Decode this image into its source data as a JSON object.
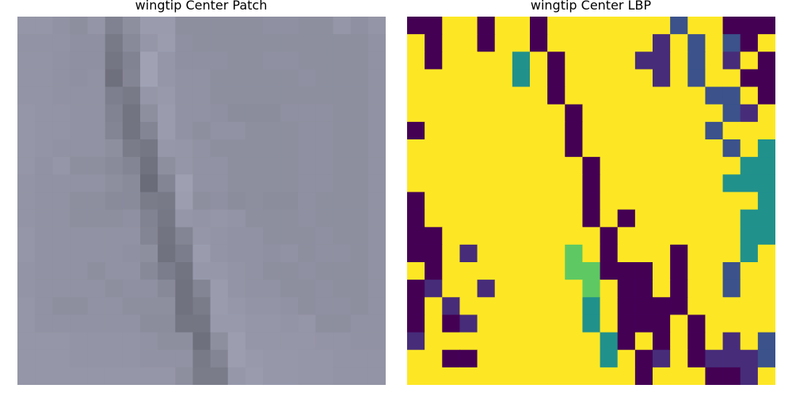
{
  "figure": {
    "left_title": "wingtip Center Patch",
    "right_title": "wingtip Center LBP"
  },
  "palette": {
    "lbp_dark": "#440154",
    "lbp_indigo": "#472c7a",
    "lbp_blue": "#3b528b",
    "lbp_teal": "#21918c",
    "lbp_green": "#5ec962",
    "lbp_yellow": "#fde725"
  },
  "patch": {
    "description_colors": "grayscale-blue tones",
    "rows": [
      [
        158,
        158,
        154,
        150,
        157,
        137,
        150,
        164,
        164,
        150,
        150,
        150,
        150,
        150,
        152,
        152,
        150,
        150,
        158,
        152,
        157
      ],
      [
        155,
        155,
        155,
        152,
        152,
        128,
        145,
        158,
        165,
        152,
        150,
        150,
        150,
        150,
        150,
        150,
        150,
        150,
        150,
        150,
        154
      ],
      [
        156,
        156,
        154,
        152,
        152,
        124,
        138,
        170,
        158,
        152,
        152,
        152,
        150,
        150,
        152,
        152,
        150,
        150,
        150,
        150,
        154
      ],
      [
        156,
        156,
        154,
        152,
        154,
        118,
        140,
        170,
        158,
        154,
        154,
        150,
        150,
        150,
        150,
        150,
        152,
        150,
        150,
        150,
        154
      ],
      [
        156,
        156,
        154,
        154,
        154,
        134,
        128,
        158,
        162,
        154,
        154,
        150,
        150,
        150,
        150,
        150,
        150,
        150,
        150,
        150,
        154
      ],
      [
        158,
        156,
        156,
        154,
        154,
        138,
        122,
        150,
        164,
        154,
        154,
        152,
        148,
        148,
        148,
        152,
        152,
        152,
        150,
        150,
        154
      ],
      [
        158,
        156,
        156,
        154,
        154,
        140,
        122,
        140,
        164,
        154,
        150,
        154,
        154,
        150,
        150,
        150,
        152,
        152,
        150,
        150,
        154
      ],
      [
        158,
        156,
        154,
        154,
        154,
        150,
        130,
        125,
        160,
        158,
        154,
        150,
        150,
        150,
        150,
        150,
        152,
        152,
        150,
        150,
        154
      ],
      [
        158,
        154,
        158,
        150,
        150,
        146,
        140,
        120,
        150,
        158,
        154,
        154,
        150,
        150,
        150,
        150,
        152,
        152,
        150,
        150,
        154
      ],
      [
        156,
        154,
        154,
        154,
        154,
        150,
        146,
        114,
        140,
        168,
        154,
        154,
        150,
        150,
        150,
        150,
        152,
        152,
        150,
        150,
        154
      ],
      [
        156,
        154,
        154,
        150,
        150,
        146,
        146,
        130,
        128,
        166,
        150,
        152,
        148,
        150,
        148,
        148,
        152,
        150,
        150,
        150,
        154
      ],
      [
        156,
        154,
        154,
        150,
        150,
        150,
        152,
        138,
        126,
        158,
        156,
        158,
        156,
        150,
        150,
        150,
        152,
        150,
        150,
        150,
        154
      ],
      [
        158,
        154,
        154,
        154,
        154,
        154,
        154,
        140,
        122,
        140,
        158,
        156,
        154,
        154,
        150,
        150,
        150,
        152,
        150,
        150,
        154
      ],
      [
        158,
        154,
        154,
        154,
        154,
        154,
        152,
        150,
        120,
        132,
        164,
        156,
        154,
        154,
        152,
        154,
        150,
        152,
        152,
        150,
        154
      ],
      [
        156,
        154,
        154,
        154,
        150,
        154,
        154,
        144,
        132,
        122,
        160,
        160,
        156,
        154,
        150,
        150,
        152,
        150,
        150,
        150,
        154
      ],
      [
        156,
        154,
        154,
        154,
        154,
        150,
        152,
        152,
        144,
        120,
        140,
        164,
        156,
        154,
        154,
        150,
        150,
        152,
        150,
        150,
        154
      ],
      [
        158,
        154,
        150,
        150,
        154,
        154,
        150,
        150,
        150,
        120,
        130,
        164,
        160,
        156,
        156,
        154,
        150,
        152,
        152,
        150,
        154
      ],
      [
        158,
        154,
        154,
        154,
        154,
        154,
        154,
        148,
        148,
        124,
        124,
        162,
        162,
        158,
        158,
        156,
        158,
        150,
        150,
        154,
        154
      ],
      [
        158,
        158,
        158,
        156,
        156,
        156,
        156,
        154,
        150,
        150,
        118,
        150,
        166,
        158,
        158,
        158,
        158,
        156,
        156,
        154,
        154
      ],
      [
        158,
        158,
        158,
        156,
        156,
        156,
        156,
        154,
        154,
        154,
        128,
        140,
        166,
        162,
        160,
        160,
        158,
        158,
        156,
        156,
        156
      ],
      [
        158,
        158,
        158,
        158,
        158,
        158,
        158,
        158,
        158,
        150,
        130,
        130,
        160,
        164,
        160,
        160,
        158,
        158,
        156,
        156,
        156
      ]
    ]
  },
  "lbp": {
    "rows": [
      [
        "d",
        "d",
        "y",
        "y",
        "d",
        "y",
        "y",
        "d",
        "y",
        "y",
        "y",
        "y",
        "y",
        "y",
        "y",
        "b",
        "y",
        "y",
        "d",
        "d",
        "d"
      ],
      [
        "y",
        "d",
        "y",
        "y",
        "d",
        "y",
        "y",
        "d",
        "y",
        "y",
        "y",
        "y",
        "y",
        "y",
        "i",
        "y",
        "b",
        "y",
        "b",
        "d",
        "y"
      ],
      [
        "y",
        "d",
        "y",
        "y",
        "y",
        "y",
        "t",
        "y",
        "d",
        "y",
        "y",
        "y",
        "y",
        "i",
        "i",
        "y",
        "b",
        "y",
        "i",
        "y",
        "d"
      ],
      [
        "y",
        "y",
        "y",
        "y",
        "y",
        "y",
        "t",
        "y",
        "d",
        "y",
        "y",
        "y",
        "y",
        "y",
        "i",
        "y",
        "b",
        "y",
        "y",
        "d",
        "d"
      ],
      [
        "y",
        "y",
        "y",
        "y",
        "y",
        "y",
        "y",
        "y",
        "d",
        "y",
        "y",
        "y",
        "y",
        "y",
        "y",
        "y",
        "y",
        "b",
        "b",
        "y",
        "d"
      ],
      [
        "y",
        "y",
        "y",
        "y",
        "y",
        "y",
        "y",
        "y",
        "y",
        "d",
        "y",
        "y",
        "y",
        "y",
        "y",
        "y",
        "y",
        "y",
        "b",
        "i",
        "y"
      ],
      [
        "d",
        "y",
        "y",
        "y",
        "y",
        "y",
        "y",
        "y",
        "y",
        "d",
        "y",
        "y",
        "y",
        "y",
        "y",
        "y",
        "y",
        "b",
        "y",
        "y",
        "y"
      ],
      [
        "y",
        "y",
        "y",
        "y",
        "y",
        "y",
        "y",
        "y",
        "y",
        "d",
        "y",
        "y",
        "y",
        "y",
        "y",
        "y",
        "y",
        "y",
        "b",
        "y",
        "t"
      ],
      [
        "y",
        "y",
        "y",
        "y",
        "y",
        "y",
        "y",
        "y",
        "y",
        "y",
        "d",
        "y",
        "y",
        "y",
        "y",
        "y",
        "y",
        "y",
        "y",
        "t",
        "t"
      ],
      [
        "y",
        "y",
        "y",
        "y",
        "y",
        "y",
        "y",
        "y",
        "y",
        "y",
        "d",
        "y",
        "y",
        "y",
        "y",
        "y",
        "y",
        "y",
        "t",
        "t",
        "t"
      ],
      [
        "d",
        "y",
        "y",
        "y",
        "y",
        "y",
        "y",
        "y",
        "y",
        "y",
        "d",
        "y",
        "y",
        "y",
        "y",
        "y",
        "y",
        "y",
        "y",
        "y",
        "t"
      ],
      [
        "d",
        "y",
        "y",
        "y",
        "y",
        "y",
        "y",
        "y",
        "y",
        "y",
        "d",
        "y",
        "d",
        "y",
        "y",
        "y",
        "y",
        "y",
        "y",
        "t",
        "t"
      ],
      [
        "d",
        "d",
        "y",
        "y",
        "y",
        "y",
        "y",
        "y",
        "y",
        "y",
        "y",
        "d",
        "y",
        "y",
        "y",
        "y",
        "y",
        "y",
        "y",
        "t",
        "t"
      ],
      [
        "d",
        "d",
        "y",
        "i",
        "y",
        "y",
        "y",
        "y",
        "y",
        "g",
        "y",
        "d",
        "y",
        "y",
        "y",
        "d",
        "y",
        "y",
        "y",
        "t",
        "y"
      ],
      [
        "y",
        "d",
        "y",
        "y",
        "y",
        "y",
        "y",
        "y",
        "y",
        "g",
        "g",
        "d",
        "d",
        "d",
        "y",
        "d",
        "y",
        "y",
        "b",
        "y",
        "y"
      ],
      [
        "d",
        "i",
        "y",
        "y",
        "i",
        "y",
        "y",
        "y",
        "y",
        "y",
        "g",
        "y",
        "d",
        "d",
        "y",
        "d",
        "y",
        "y",
        "b",
        "y",
        "y"
      ],
      [
        "d",
        "y",
        "i",
        "y",
        "y",
        "y",
        "y",
        "y",
        "y",
        "y",
        "t",
        "y",
        "d",
        "d",
        "d",
        "d",
        "y",
        "y",
        "y",
        "y",
        "y"
      ],
      [
        "d",
        "y",
        "d",
        "i",
        "y",
        "y",
        "y",
        "y",
        "y",
        "y",
        "t",
        "y",
        "d",
        "d",
        "d",
        "y",
        "d",
        "y",
        "y",
        "y",
        "y"
      ],
      [
        "i",
        "y",
        "y",
        "y",
        "y",
        "y",
        "y",
        "y",
        "y",
        "y",
        "y",
        "t",
        "d",
        "y",
        "d",
        "y",
        "d",
        "y",
        "i",
        "y",
        "b"
      ],
      [
        "y",
        "y",
        "d",
        "d",
        "y",
        "y",
        "y",
        "y",
        "y",
        "y",
        "y",
        "t",
        "y",
        "d",
        "i",
        "y",
        "d",
        "i",
        "i",
        "i",
        "b"
      ],
      [
        "y",
        "y",
        "y",
        "y",
        "y",
        "y",
        "y",
        "y",
        "y",
        "y",
        "y",
        "y",
        "y",
        "d",
        "y",
        "y",
        "y",
        "d",
        "d",
        "i",
        "y"
      ]
    ]
  }
}
